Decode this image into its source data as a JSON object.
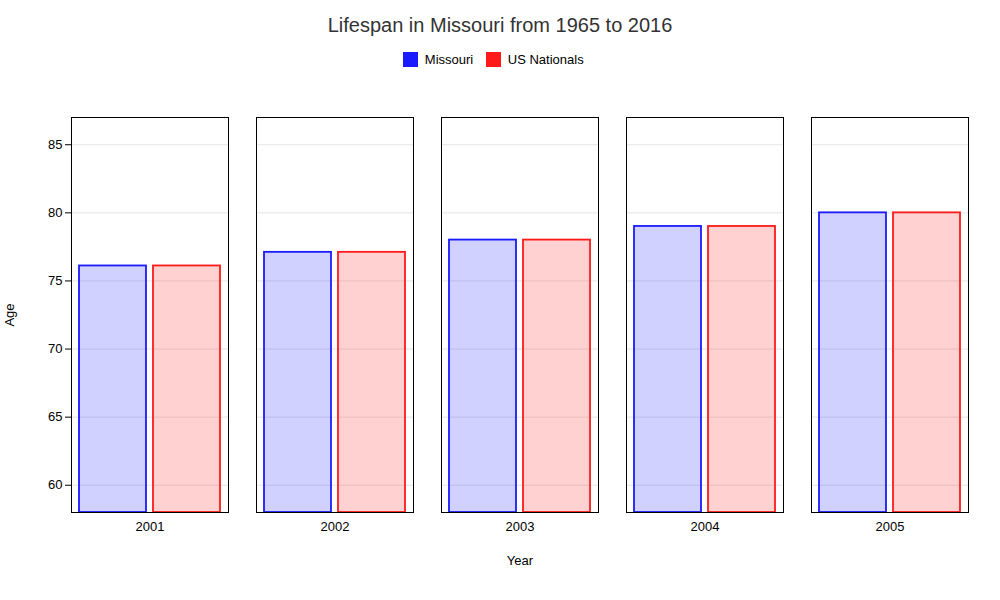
{
  "chart_data": {
    "type": "bar",
    "title": "Lifespan in Missouri from 1965 to 2016",
    "xlabel": "Year",
    "ylabel": "Age",
    "categories": [
      "2001",
      "2002",
      "2003",
      "2004",
      "2005"
    ],
    "series": [
      {
        "name": "Missouri",
        "color": "#1a1aff",
        "values": [
          76.1,
          77.1,
          78.0,
          79.0,
          80.0
        ]
      },
      {
        "name": "US Nationals",
        "color": "#ff1a1a",
        "values": [
          76.1,
          77.1,
          78.0,
          79.0,
          80.0
        ]
      }
    ],
    "ylim": [
      58,
      87
    ],
    "yticks": [
      60,
      65,
      70,
      75,
      80,
      85
    ],
    "grid": true,
    "legend": "upper center"
  }
}
